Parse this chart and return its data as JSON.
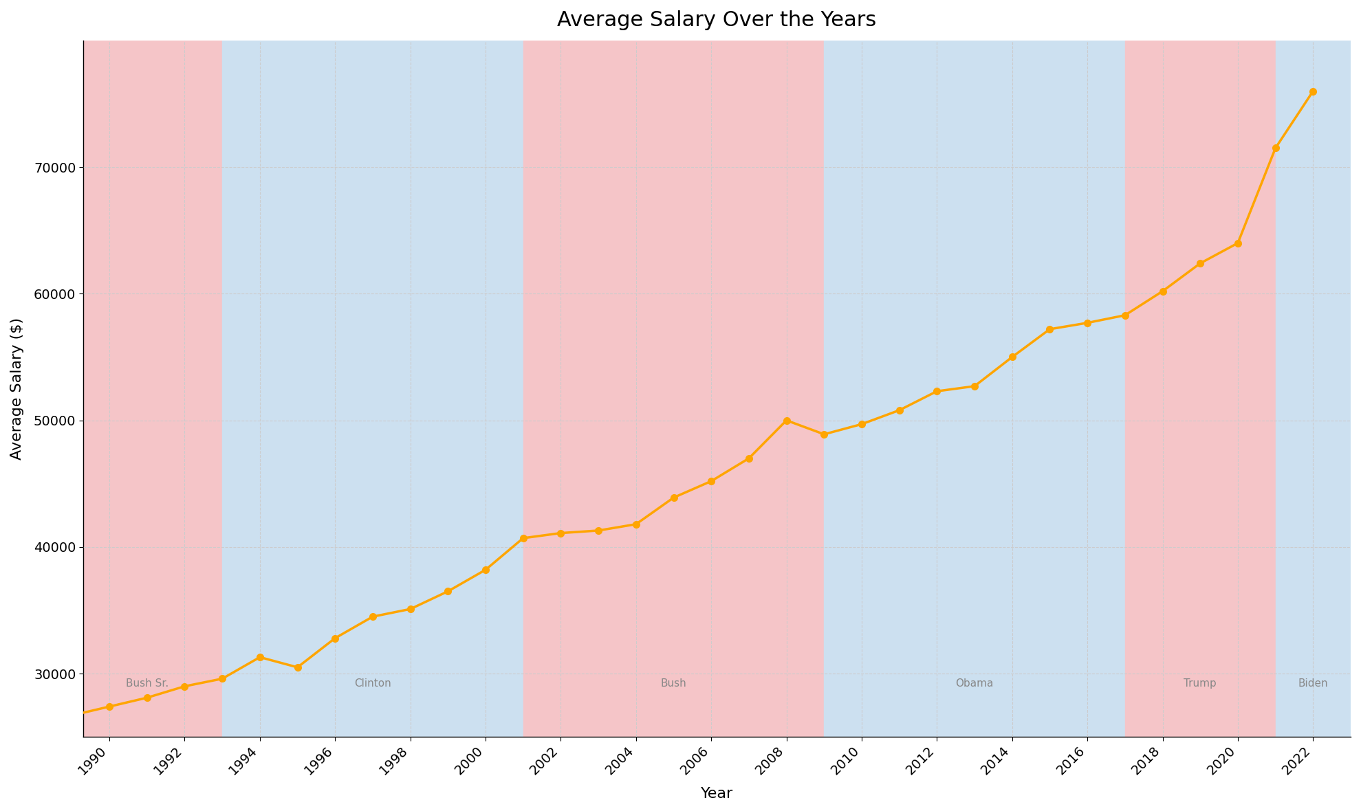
{
  "title": "Average Salary Over the Years",
  "xlabel": "Year",
  "ylabel": "Average Salary ($)",
  "years": [
    1989,
    1990,
    1991,
    1992,
    1993,
    1994,
    1995,
    1996,
    1997,
    1998,
    1999,
    2000,
    2001,
    2002,
    2003,
    2004,
    2005,
    2006,
    2007,
    2008,
    2009,
    2010,
    2011,
    2012,
    2013,
    2014,
    2015,
    2016,
    2017,
    2018,
    2019,
    2020,
    2021,
    2022
  ],
  "salaries": [
    26700,
    27400,
    28100,
    29000,
    29600,
    31300,
    30500,
    32800,
    34500,
    35100,
    36500,
    38200,
    40700,
    41100,
    41300,
    41800,
    43900,
    45200,
    47000,
    50000,
    48900,
    49700,
    50800,
    52300,
    52700,
    55000,
    57200,
    57700,
    58300,
    60200,
    62400,
    64000,
    71500,
    76000
  ],
  "presidents": [
    {
      "name": "Bush Sr.",
      "start": 1989,
      "end": 1993,
      "party": "R"
    },
    {
      "name": "Clinton",
      "start": 1993,
      "end": 2001,
      "party": "D"
    },
    {
      "name": "Bush",
      "start": 2001,
      "end": 2009,
      "party": "R"
    },
    {
      "name": "Obama",
      "start": 2009,
      "end": 2017,
      "party": "D"
    },
    {
      "name": "Trump",
      "start": 2017,
      "end": 2021,
      "party": "R"
    },
    {
      "name": "Biden",
      "start": 2021,
      "end": 2023,
      "party": "D"
    }
  ],
  "republican_color": "#f5c5c8",
  "democrat_color": "#cce0f0",
  "line_color": "#FFA500",
  "marker_color": "#FFA500",
  "ylim": [
    25000,
    80000
  ],
  "xlim_left": 1989.3,
  "xlim_right": 2023.0,
  "title_fontsize": 22,
  "label_fontsize": 16,
  "tick_fontsize": 14,
  "president_label_fontsize": 11,
  "xticks": [
    1990,
    1992,
    1994,
    1996,
    1998,
    2000,
    2002,
    2004,
    2006,
    2008,
    2010,
    2012,
    2014,
    2016,
    2018,
    2020,
    2022
  ],
  "yticks": [
    30000,
    40000,
    50000,
    60000,
    70000
  ]
}
